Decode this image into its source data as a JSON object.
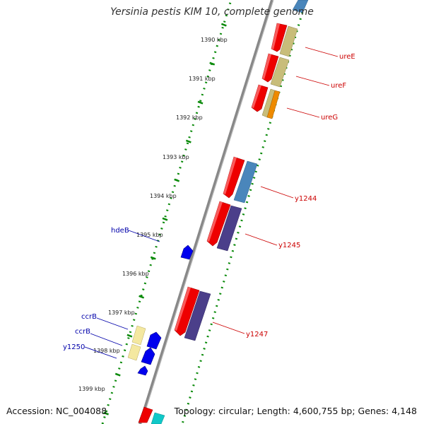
{
  "title": "Yersinia pestis KIM 10, complete genome",
  "footer": {
    "accession": "Accession: NC_004088",
    "summary": "Topology: circular; Length: 4,600,755 bp; Genes: 4,148"
  },
  "ticks": [
    "1390 kbp",
    "1391 kbp",
    "1392 kbp",
    "1393 kbp",
    "1394 kbp",
    "1395 kbp",
    "1396 kbp",
    "1397 kbp",
    "1398 kbp",
    "1399 kbp"
  ],
  "gene_labels": [
    "ureE",
    "ureF",
    "ureG",
    "y1244",
    "y1245",
    "y1247",
    "hdeB",
    "ccrB",
    "ccrB",
    "y1250"
  ],
  "colors": {
    "backbone": "#8a8a8a",
    "tick_dots": "#0a8a0a",
    "forward_gene": "#ee0000",
    "reverse_gene": "#0000ee",
    "label_red": "#cc0000",
    "label_blue": "#0000aa",
    "khaki": "#c8bd7a",
    "steelblue": "#4a86bb",
    "slate": "#4b3f8a",
    "orange": "#ee8a00",
    "cream": "#f4e8a0",
    "cyan": "#10c8c8"
  }
}
